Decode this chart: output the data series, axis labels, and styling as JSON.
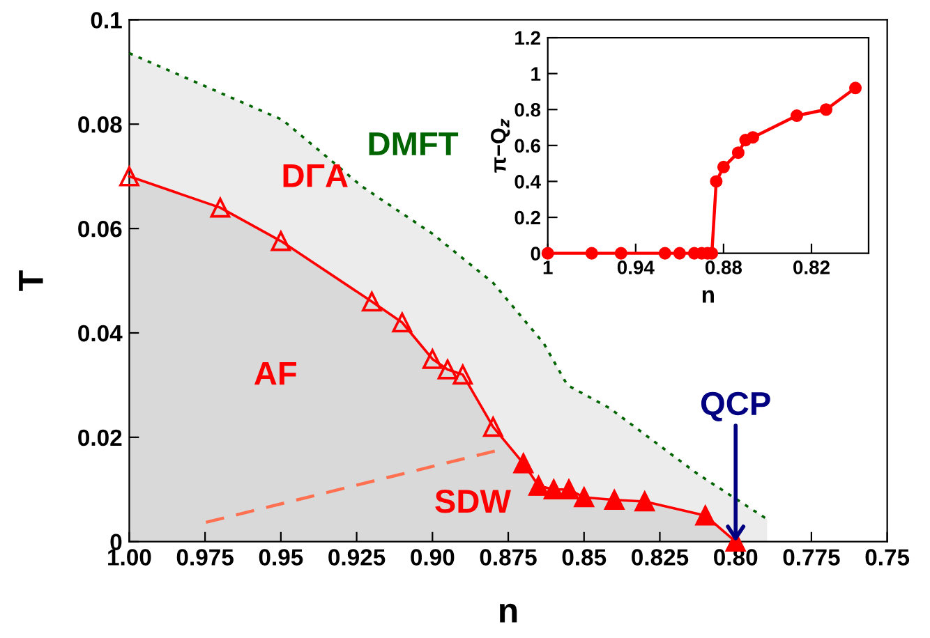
{
  "chart_data": [
    {
      "type": "line",
      "xlabel": "n",
      "ylabel": "T",
      "xlim": [
        1.0,
        0.75
      ],
      "ylim": [
        0,
        0.1
      ],
      "xticks": [
        {
          "value": 1.0,
          "label": "1.00"
        },
        {
          "value": 0.975,
          "label": "0.975"
        },
        {
          "value": 0.95,
          "label": "0.95"
        },
        {
          "value": 0.925,
          "label": "0.925"
        },
        {
          "value": 0.9,
          "label": "0.90"
        },
        {
          "value": 0.875,
          "label": "0.875"
        },
        {
          "value": 0.85,
          "label": "0.85"
        },
        {
          "value": 0.825,
          "label": "0.825"
        },
        {
          "value": 0.8,
          "label": "0.80"
        },
        {
          "value": 0.775,
          "label": "0.775"
        },
        {
          "value": 0.75,
          "label": "0.75"
        }
      ],
      "yticks": [
        0,
        0.02,
        0.04,
        0.06,
        0.08,
        0.1
      ],
      "series": [
        {
          "type": "area",
          "color": "#006400",
          "line_style": "dotted",
          "marker": "none",
          "x": [
            1.0,
            0.9494,
            0.9231,
            0.9,
            0.88,
            0.8633,
            0.8555,
            0.8416,
            0.8126,
            0.7896
          ],
          "values": [
            0.0936,
            0.0808,
            0.068,
            0.059,
            0.0496,
            0.038,
            0.03,
            0.0256,
            0.013,
            0.0043
          ]
        },
        {
          "type": "area",
          "color": "#ff0000",
          "line_style": "solid",
          "marker": "triangle",
          "x": [
            1.0,
            0.97,
            0.95,
            0.92,
            0.91,
            0.9,
            0.895,
            0.89,
            0.88,
            0.87,
            0.865,
            0.86,
            0.855,
            0.85,
            0.84,
            0.83,
            0.81,
            0.8
          ],
          "values": [
            0.07,
            0.064,
            0.0576,
            0.046,
            0.042,
            0.035,
            0.033,
            0.032,
            0.022,
            0.015,
            0.0107,
            0.01,
            0.01,
            0.0085,
            0.008,
            0.0077,
            0.005,
            0
          ]
        },
        {
          "type": "scatter",
          "color": "#ff0000",
          "marker": "triangle",
          "x": [
            0.87,
            0.865,
            0.86,
            0.855,
            0.85,
            0.84,
            0.83,
            0.81,
            0.8
          ],
          "values": [
            0.015,
            0.0107,
            0.01,
            0.01,
            0.0085,
            0.008,
            0.0077,
            0.005,
            0
          ]
        },
        {
          "color": "#ff7050",
          "line_style": "dashed",
          "marker": "none",
          "x": [
            0.9747,
            0.8757
          ],
          "values": [
            0.0037,
            0.0179
          ]
        }
      ],
      "annotations": [
        "DMFT",
        "DΓA",
        "AF",
        "SDW",
        {
          "text": "QCP",
          "x": 0.8,
          "y": 0
        }
      ],
      "grid": false,
      "legend": false
    },
    {
      "type": "line",
      "xlabel": "n",
      "ylabel": "π−Q$_{z}$",
      "xlim": [
        1.0,
        0.781
      ],
      "ylim": [
        0,
        1.2
      ],
      "xticks": [
        1,
        0.94,
        0.88,
        0.82
      ],
      "yticks": [
        0,
        0.2,
        0.4,
        0.6,
        0.8,
        1,
        1.2
      ],
      "series": [
        {
          "color": "#ff0000",
          "line_style": "solid",
          "marker": "circle",
          "x": [
            1.0,
            0.97,
            0.95,
            0.92,
            0.91,
            0.9,
            0.895,
            0.891,
            0.888,
            0.885,
            0.88,
            0.87,
            0.865,
            0.86,
            0.83,
            0.81,
            0.79
          ],
          "values": [
            0,
            0,
            0,
            0,
            0,
            0,
            0,
            0,
            0,
            0.4,
            0.48,
            0.56,
            0.63,
            0.645,
            0.766,
            0.8,
            0.92
          ]
        }
      ],
      "grid": false,
      "legend": false
    }
  ]
}
